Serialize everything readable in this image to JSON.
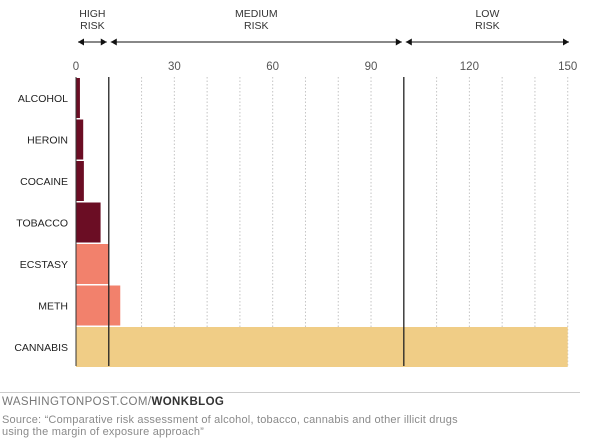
{
  "chart_data": {
    "type": "bar",
    "orientation": "horizontal",
    "categories": [
      "ALCOHOL",
      "HEROIN",
      "COCAINE",
      "TOBACCO",
      "ECSTASY",
      "METH",
      "CANNABIS"
    ],
    "values": [
      1.2,
      2.2,
      2.4,
      7.5,
      10,
      13.5,
      150
    ],
    "colors": [
      "#6b0d24",
      "#6b0d24",
      "#6b0d24",
      "#6b0d24",
      "#f2816c",
      "#f2816c",
      "#f0cd86"
    ],
    "xticks": [
      "0",
      "30",
      "60",
      "90",
      "120",
      "150"
    ],
    "xtick_values": [
      0,
      30,
      60,
      90,
      120,
      150
    ],
    "xlim": [
      0,
      151
    ],
    "grid": true,
    "risk_zones": [
      {
        "label_line1": "HIGH",
        "label_line2": "RISK",
        "from": 0,
        "to": 10
      },
      {
        "label_line1": "MEDIUM",
        "label_line2": "RISK",
        "from": 10,
        "to": 100
      },
      {
        "label_line1": "LOW",
        "label_line2": "RISK",
        "from": 100,
        "to": 151
      }
    ],
    "thresholds": [
      10,
      100
    ],
    "title": "",
    "xlabel": "",
    "ylabel": ""
  },
  "footer": {
    "site": "WASHINGTONPOST.COM/",
    "blog": "WONKBLOG",
    "source_line1": "Source: “Comparative risk assessment of alcohol, tobacco, cannabis and other illicit drugs",
    "source_line2": "using the margin of exposure approach”"
  }
}
